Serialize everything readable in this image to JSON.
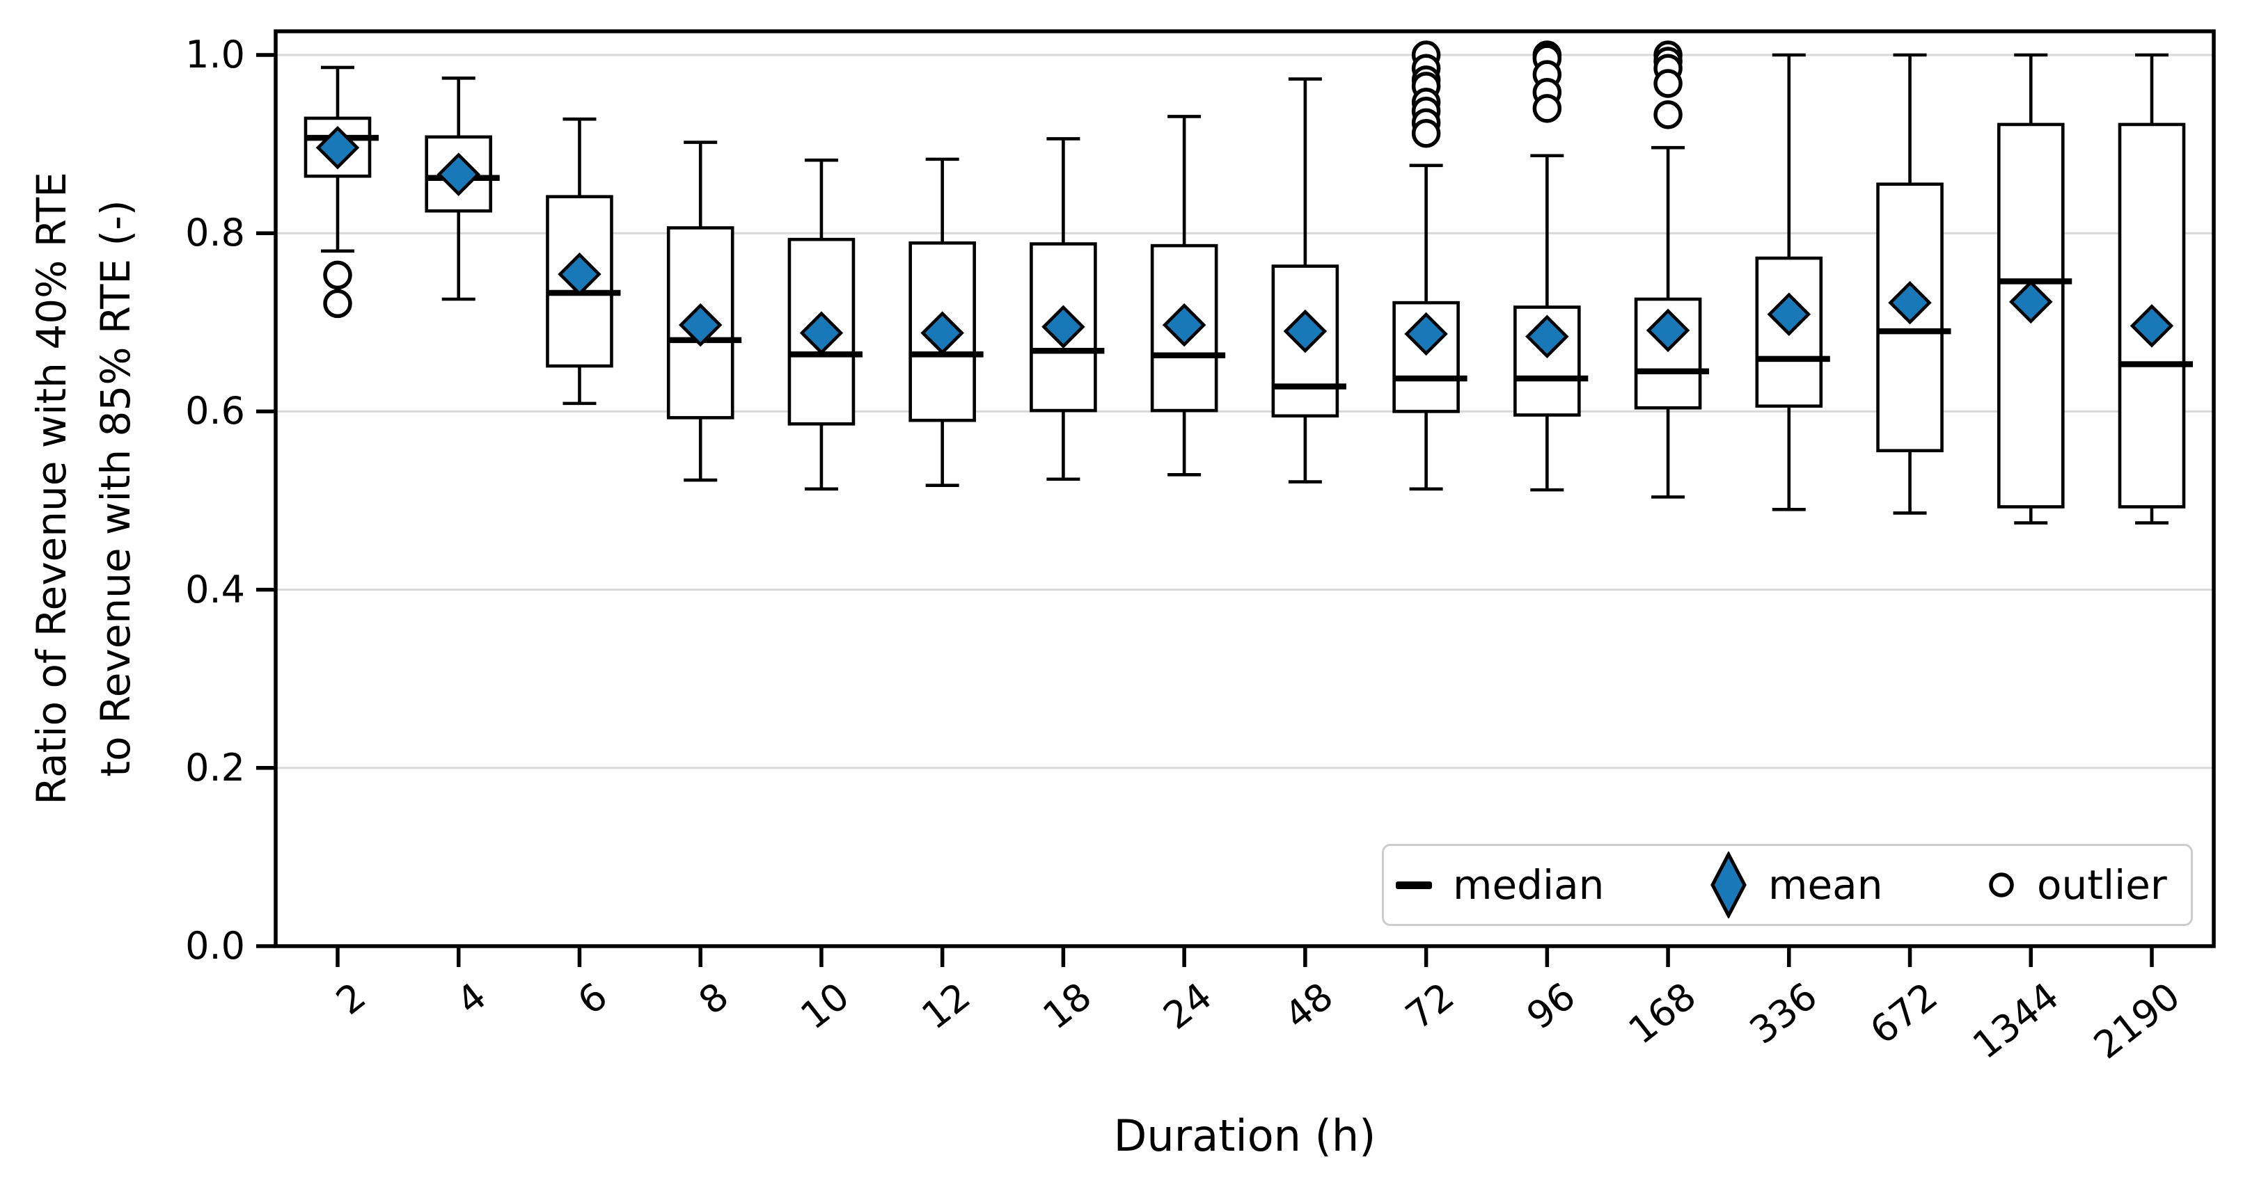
{
  "chart_data": {
    "type": "box",
    "title": "",
    "xlabel": "Duration (h)",
    "ylabel_line1": "Ratio of Revenue with 40% RTE",
    "ylabel_line2": "to Revenue with 85% RTE (-)",
    "ylim": [
      0.0,
      1.027
    ],
    "grid": true,
    "legend_position": "lower right",
    "ytick_values": [
      0.0,
      0.2,
      0.4,
      0.6,
      0.8,
      1.0
    ],
    "ytick_labels": [
      "0.0",
      "0.2",
      "0.4",
      "0.6",
      "0.8",
      "1.0"
    ],
    "categories": [
      "2",
      "4",
      "6",
      "8",
      "10",
      "12",
      "18",
      "24",
      "48",
      "72",
      "96",
      "168",
      "336",
      "672",
      "1344",
      "2190"
    ],
    "boxes": [
      {
        "category": "2",
        "whisker_low": 0.78,
        "q1": 0.864,
        "median": 0.907,
        "q3": 0.929,
        "whisker_high": 0.986,
        "mean": 0.896,
        "outliers": [
          0.753,
          0.721
        ]
      },
      {
        "category": "4",
        "whisker_low": 0.726,
        "q1": 0.825,
        "median": 0.862,
        "q3": 0.908,
        "whisker_high": 0.974,
        "mean": 0.866,
        "outliers": []
      },
      {
        "category": "6",
        "whisker_low": 0.609,
        "q1": 0.651,
        "median": 0.733,
        "q3": 0.841,
        "whisker_high": 0.928,
        "mean": 0.754,
        "outliers": []
      },
      {
        "category": "8",
        "whisker_low": 0.523,
        "q1": 0.593,
        "median": 0.68,
        "q3": 0.806,
        "whisker_high": 0.902,
        "mean": 0.697,
        "outliers": []
      },
      {
        "category": "10",
        "whisker_low": 0.513,
        "q1": 0.586,
        "median": 0.664,
        "q3": 0.793,
        "whisker_high": 0.882,
        "mean": 0.688,
        "outliers": []
      },
      {
        "category": "12",
        "whisker_low": 0.517,
        "q1": 0.59,
        "median": 0.664,
        "q3": 0.789,
        "whisker_high": 0.883,
        "mean": 0.688,
        "outliers": []
      },
      {
        "category": "18",
        "whisker_low": 0.524,
        "q1": 0.601,
        "median": 0.668,
        "q3": 0.788,
        "whisker_high": 0.906,
        "mean": 0.695,
        "outliers": []
      },
      {
        "category": "24",
        "whisker_low": 0.529,
        "q1": 0.601,
        "median": 0.663,
        "q3": 0.786,
        "whisker_high": 0.931,
        "mean": 0.697,
        "outliers": []
      },
      {
        "category": "48",
        "whisker_low": 0.521,
        "q1": 0.595,
        "median": 0.628,
        "q3": 0.763,
        "whisker_high": 0.973,
        "mean": 0.69,
        "outliers": []
      },
      {
        "category": "72",
        "whisker_low": 0.513,
        "q1": 0.6,
        "median": 0.637,
        "q3": 0.722,
        "whisker_high": 0.876,
        "mean": 0.687,
        "outliers": [
          1.0,
          0.985,
          0.972,
          0.965,
          0.947,
          0.937,
          0.924,
          0.912
        ]
      },
      {
        "category": "96",
        "whisker_low": 0.512,
        "q1": 0.596,
        "median": 0.637,
        "q3": 0.717,
        "whisker_high": 0.887,
        "mean": 0.684,
        "outliers": [
          1.0,
          0.996,
          0.978,
          0.958,
          0.94
        ]
      },
      {
        "category": "168",
        "whisker_low": 0.504,
        "q1": 0.604,
        "median": 0.645,
        "q3": 0.726,
        "whisker_high": 0.896,
        "mean": 0.691,
        "outliers": [
          1.0,
          0.993,
          0.985,
          0.968,
          0.933
        ]
      },
      {
        "category": "336",
        "whisker_low": 0.49,
        "q1": 0.606,
        "median": 0.659,
        "q3": 0.772,
        "whisker_high": 1.0,
        "mean": 0.709,
        "outliers": []
      },
      {
        "category": "672",
        "whisker_low": 0.486,
        "q1": 0.556,
        "median": 0.69,
        "q3": 0.855,
        "whisker_high": 1.0,
        "mean": 0.722,
        "outliers": []
      },
      {
        "category": "1344",
        "whisker_low": 0.475,
        "q1": 0.493,
        "median": 0.746,
        "q3": 0.922,
        "whisker_high": 1.0,
        "mean": 0.723,
        "outliers": []
      },
      {
        "category": "2190",
        "whisker_low": 0.475,
        "q1": 0.493,
        "median": 0.653,
        "q3": 0.922,
        "whisker_high": 1.0,
        "mean": 0.696,
        "outliers": []
      }
    ],
    "legend": [
      {
        "label": "median",
        "marker": "median-dash"
      },
      {
        "label": "mean",
        "marker": "mean-diamond"
      },
      {
        "label": "outlier",
        "marker": "outlier-circle"
      }
    ],
    "colors": {
      "mean_fill": "#1878b8",
      "line": "#000000",
      "grid": "#d8d8d8",
      "legend_border": "#cccccc",
      "background": "#ffffff"
    }
  }
}
